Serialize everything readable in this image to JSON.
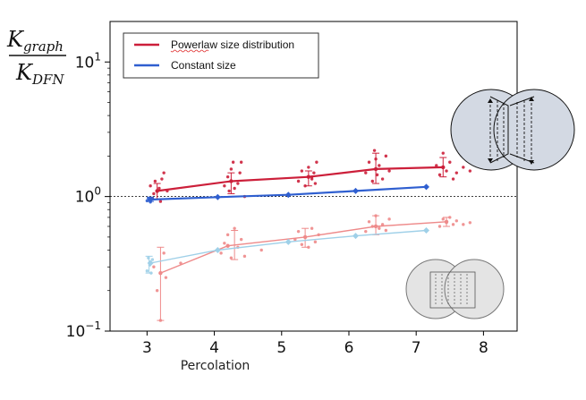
{
  "chart_data": {
    "type": "scatter",
    "xlabel": "Percolation",
    "ylabel": {
      "numerator": "K",
      "numerator_sub": "graph",
      "denominator": "K",
      "denominator_sub": "DFN"
    },
    "x_ticks": [
      3,
      4,
      5,
      6,
      7,
      8
    ],
    "x_tick_labels": [
      "3",
      "4",
      "5",
      "6",
      "7",
      "8"
    ],
    "xlim": [
      2.45,
      8.5
    ],
    "y_scale": "log",
    "ylim": [
      0.1,
      20
    ],
    "y_ticks": [
      {
        "value": 0.1,
        "base": "10",
        "exp": "−1"
      },
      {
        "value": 1,
        "base": "10",
        "exp": "0"
      },
      {
        "value": 10,
        "base": "10",
        "exp": "1"
      }
    ],
    "reference_line": {
      "y": 1.0,
      "style": "dotted",
      "color": "#000000"
    },
    "legend": {
      "placement": "top-left",
      "entries": [
        {
          "label": "Powerlaw size distribution",
          "color": "#cc1f3a"
        },
        {
          "label": "Constant size",
          "color": "#2f5fd0"
        }
      ]
    },
    "series": [
      {
        "group": "large",
        "distribution": "powerlaw",
        "color": "#cc1f3a",
        "line_width": 2.2,
        "mean": [
          [
            3.15,
            1.1
          ],
          [
            4.25,
            1.3
          ],
          [
            5.4,
            1.4
          ],
          [
            6.4,
            1.6
          ],
          [
            7.4,
            1.65
          ]
        ],
        "errorbars": [
          [
            3.15,
            0.95,
            1.25
          ],
          [
            4.25,
            1.05,
            1.5
          ],
          [
            5.4,
            1.2,
            1.55
          ],
          [
            6.4,
            1.25,
            2.1
          ],
          [
            7.4,
            1.4,
            1.95
          ]
        ],
        "points": [
          [
            3.05,
            1.2
          ],
          [
            3.08,
            0.97
          ],
          [
            3.1,
            1.05
          ],
          [
            3.12,
            1.3
          ],
          [
            3.18,
            1.15
          ],
          [
            3.2,
            0.92
          ],
          [
            3.22,
            1.35
          ],
          [
            3.25,
            1.5
          ],
          [
            3.3,
            1.1
          ],
          [
            4.15,
            1.2
          ],
          [
            4.2,
            1.4
          ],
          [
            4.22,
            1.1
          ],
          [
            4.25,
            1.6
          ],
          [
            4.28,
            1.8
          ],
          [
            4.3,
            1.15
          ],
          [
            4.35,
            1.25
          ],
          [
            4.38,
            1.5
          ],
          [
            4.4,
            1.8
          ],
          [
            4.45,
            1.0
          ],
          [
            5.25,
            1.3
          ],
          [
            5.3,
            1.55
          ],
          [
            5.35,
            1.2
          ],
          [
            5.4,
            1.65
          ],
          [
            5.45,
            1.35
          ],
          [
            5.48,
            1.5
          ],
          [
            5.5,
            1.25
          ],
          [
            5.52,
            1.8
          ],
          [
            5.45,
            1.4
          ],
          [
            6.25,
            1.5
          ],
          [
            6.3,
            1.8
          ],
          [
            6.35,
            1.3
          ],
          [
            6.38,
            2.2
          ],
          [
            6.4,
            1.9
          ],
          [
            6.42,
            1.45
          ],
          [
            6.45,
            1.7
          ],
          [
            6.5,
            1.35
          ],
          [
            6.55,
            2.0
          ],
          [
            6.6,
            1.55
          ],
          [
            7.3,
            1.7
          ],
          [
            7.35,
            1.45
          ],
          [
            7.4,
            2.1
          ],
          [
            7.45,
            1.55
          ],
          [
            7.5,
            1.8
          ],
          [
            7.55,
            1.35
          ],
          [
            7.6,
            1.5
          ],
          [
            7.7,
            1.65
          ],
          [
            7.8,
            1.55
          ]
        ]
      },
      {
        "group": "large",
        "distribution": "constant",
        "color": "#2f5fd0",
        "line_width": 2.2,
        "mean": [
          [
            3.05,
            0.95
          ],
          [
            4.05,
            0.99
          ],
          [
            5.1,
            1.03
          ],
          [
            6.1,
            1.1
          ],
          [
            7.15,
            1.18
          ]
        ],
        "errorbars": [
          [
            3.05,
            0.92,
            0.99
          ]
        ],
        "points": [
          [
            3.0,
            0.93
          ],
          [
            3.02,
            0.97
          ],
          [
            3.05,
            0.91
          ],
          [
            3.08,
            0.96
          ],
          [
            4.05,
            0.99
          ],
          [
            5.1,
            1.03
          ],
          [
            6.1,
            1.1
          ],
          [
            7.15,
            1.18
          ]
        ]
      },
      {
        "group": "small",
        "distribution": "powerlaw",
        "color": "#ee8a8a",
        "line_width": 1.4,
        "mean": [
          [
            3.2,
            0.27
          ],
          [
            4.2,
            0.43
          ],
          [
            5.35,
            0.5
          ],
          [
            6.4,
            0.6
          ],
          [
            7.45,
            0.65
          ]
        ],
        "errorbars": [
          [
            3.2,
            0.12,
            0.42
          ],
          [
            4.3,
            0.34,
            0.56
          ],
          [
            5.35,
            0.42,
            0.58
          ],
          [
            6.4,
            0.52,
            0.72
          ],
          [
            7.45,
            0.6,
            0.7
          ]
        ],
        "points": [
          [
            3.1,
            0.3
          ],
          [
            3.15,
            0.2
          ],
          [
            3.2,
            0.12
          ],
          [
            3.25,
            0.38
          ],
          [
            3.28,
            0.25
          ],
          [
            3.5,
            0.32
          ],
          [
            4.1,
            0.38
          ],
          [
            4.15,
            0.45
          ],
          [
            4.2,
            0.52
          ],
          [
            4.25,
            0.35
          ],
          [
            4.3,
            0.58
          ],
          [
            4.35,
            0.42
          ],
          [
            4.4,
            0.48
          ],
          [
            4.45,
            0.36
          ],
          [
            4.7,
            0.4
          ],
          [
            5.2,
            0.48
          ],
          [
            5.25,
            0.55
          ],
          [
            5.3,
            0.44
          ],
          [
            5.35,
            0.5
          ],
          [
            5.4,
            0.42
          ],
          [
            5.45,
            0.58
          ],
          [
            5.5,
            0.46
          ],
          [
            5.55,
            0.52
          ],
          [
            6.25,
            0.55
          ],
          [
            6.3,
            0.65
          ],
          [
            6.35,
            0.6
          ],
          [
            6.4,
            0.72
          ],
          [
            6.45,
            0.58
          ],
          [
            6.5,
            0.62
          ],
          [
            6.55,
            0.56
          ],
          [
            6.6,
            0.68
          ],
          [
            7.35,
            0.6
          ],
          [
            7.4,
            0.68
          ],
          [
            7.45,
            0.64
          ],
          [
            7.5,
            0.7
          ],
          [
            7.55,
            0.62
          ],
          [
            7.6,
            0.66
          ],
          [
            7.7,
            0.62
          ],
          [
            7.8,
            0.64
          ]
        ]
      },
      {
        "group": "small",
        "distribution": "constant",
        "color": "#9fd0e8",
        "line_width": 1.4,
        "mean": [
          [
            3.05,
            0.32
          ],
          [
            4.05,
            0.4
          ],
          [
            5.1,
            0.46
          ],
          [
            6.1,
            0.51
          ],
          [
            7.15,
            0.56
          ]
        ],
        "errorbars": [
          [
            3.03,
            0.27,
            0.36
          ]
        ],
        "points": [
          [
            3.0,
            0.28
          ],
          [
            3.02,
            0.35
          ],
          [
            3.04,
            0.31
          ],
          [
            3.06,
            0.27
          ],
          [
            3.08,
            0.34
          ],
          [
            4.05,
            0.4
          ],
          [
            5.1,
            0.46
          ],
          [
            6.1,
            0.51
          ],
          [
            7.15,
            0.56
          ]
        ]
      }
    ]
  }
}
